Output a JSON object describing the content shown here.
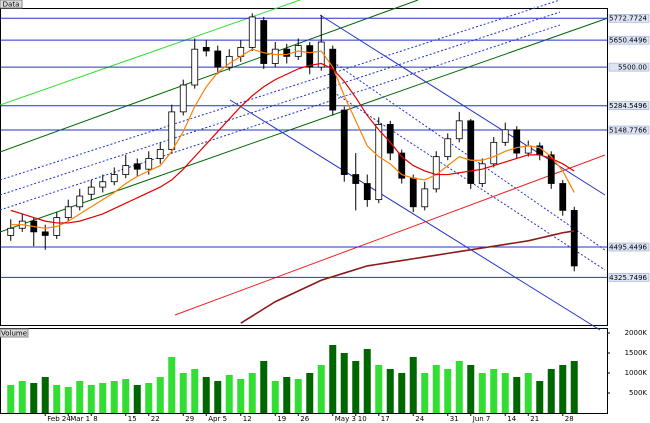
{
  "chart_data": {
    "type": "candlestick",
    "title": "Data",
    "categories": [
      null,
      null,
      null,
      "Feb 24",
      null,
      "Mar 1",
      null,
      "8",
      null,
      null,
      "15",
      null,
      "22",
      null,
      null,
      "29",
      null,
      "Apr 5",
      null,
      null,
      "12",
      null,
      null,
      "19",
      null,
      "26",
      null,
      null,
      "May 3",
      null,
      "10",
      null,
      "17",
      null,
      null,
      "24",
      null,
      null,
      "31",
      null,
      "Jun 7",
      null,
      null,
      "14",
      null,
      "21",
      null,
      null,
      "28",
      null
    ],
    "open": [
      4560,
      4600,
      4640,
      4580,
      4560,
      4660,
      4720,
      4790,
      4830,
      4860,
      4900,
      4960,
      4930,
      4990,
      5040,
      5250,
      5400,
      5610,
      5590,
      5500,
      5560,
      5610,
      5760,
      5520,
      5600,
      5560,
      5620,
      5500,
      5600,
      5260,
      4900,
      4850,
      4760,
      5180,
      5020,
      4880,
      4720,
      4820,
      5000,
      5100,
      5200,
      4850,
      4960,
      5080,
      5150,
      5020,
      5060,
      5010,
      4850,
      4700
    ],
    "high": [
      4650,
      4680,
      4660,
      4620,
      4690,
      4760,
      4820,
      4870,
      4900,
      4940,
      5010,
      4990,
      5030,
      5080,
      5290,
      5430,
      5660,
      5650,
      5620,
      5600,
      5650,
      5800,
      5780,
      5640,
      5630,
      5660,
      5640,
      5790,
      5620,
      5280,
      5020,
      4900,
      5220,
      5200,
      5040,
      4900,
      4860,
      5030,
      5130,
      5250,
      5210,
      4990,
      5110,
      5190,
      5170,
      5090,
      5080,
      5030,
      4870,
      4720
    ],
    "low": [
      4530,
      4580,
      4500,
      4480,
      4540,
      4640,
      4700,
      4760,
      4800,
      4840,
      4880,
      4890,
      4900,
      4960,
      5020,
      5230,
      5380,
      5560,
      5460,
      5480,
      5530,
      5590,
      5490,
      5500,
      5520,
      5540,
      5460,
      5480,
      5230,
      4860,
      4700,
      4720,
      4740,
      4980,
      4850,
      4690,
      4700,
      4800,
      4980,
      5080,
      4820,
      4830,
      4940,
      5060,
      4990,
      5000,
      4980,
      4820,
      4670,
      4360
    ],
    "close": [
      4600,
      4640,
      4580,
      4560,
      4660,
      4720,
      4780,
      4830,
      4860,
      4900,
      4950,
      4930,
      4990,
      5040,
      5250,
      5400,
      5600,
      5590,
      5500,
      5560,
      5610,
      5780,
      5520,
      5600,
      5560,
      5620,
      5500,
      5640,
      5260,
      4900,
      4850,
      4760,
      5180,
      5020,
      4880,
      4720,
      4820,
      5000,
      5100,
      5200,
      4850,
      4960,
      5080,
      5150,
      5020,
      5060,
      5010,
      4850,
      4700,
      4390
    ],
    "up_color": "#ffffff",
    "down_color": "#000000",
    "ylim": [
      4060,
      5830
    ],
    "yticks": [
      5772.7724,
      5650.4496,
      {
        "value": 5500,
        "label": "5500.00"
      },
      5284.5496,
      5148.7766,
      4495.4496,
      4325.7496
    ],
    "grid": true,
    "overlays": [
      {
        "color": "#ff8000",
        "values": [
          4620,
          4620,
          4610,
          4600,
          4610,
          4640,
          4680,
          4720,
          4760,
          4800,
          4850,
          4890,
          4920,
          4950,
          5030,
          5140,
          5280,
          5390,
          5470,
          5520,
          5560,
          5600,
          5580,
          5570,
          5570,
          5590,
          5580,
          5590,
          5500,
          5340,
          5200,
          5060,
          5000,
          4960,
          4900,
          4880,
          4870,
          4900,
          4950,
          5000,
          4980,
          4980,
          5000,
          5030,
          5050,
          5060,
          5050,
          5000,
          4920,
          4800
        ]
      },
      {
        "color": "#e00000",
        "values": [
          4700,
          4680,
          4660,
          4640,
          4630,
          4630,
          4640,
          4660,
          4680,
          4710,
          4740,
          4770,
          4800,
          4830,
          4870,
          4930,
          5000,
          5070,
          5140,
          5210,
          5280,
          5340,
          5390,
          5430,
          5460,
          5490,
          5510,
          5520,
          5490,
          5420,
          5330,
          5230,
          5150,
          5080,
          5000,
          4950,
          4920,
          4900,
          4900,
          4910,
          4920,
          4930,
          4950,
          4970,
          4990,
          5010,
          5010,
          4990,
          4960,
          4920
        ]
      },
      {
        "color": "#8b1a1a",
        "values": [
          null,
          null,
          null,
          null,
          null,
          null,
          null,
          null,
          null,
          null,
          null,
          null,
          null,
          null,
          null,
          null,
          null,
          null,
          null,
          null,
          4070,
          4110,
          4150,
          4190,
          4220,
          4250,
          4280,
          4310,
          4330,
          4350,
          4370,
          4390,
          4400,
          4410,
          4420,
          4430,
          4440,
          4450,
          4460,
          4470,
          4480,
          4490,
          4500,
          4510,
          4520,
          4530,
          4545,
          4560,
          4575,
          4585
        ]
      }
    ],
    "volume": {
      "label": "Volume",
      "values": [
        700000,
        800000,
        750000,
        900000,
        700000,
        650000,
        800000,
        700000,
        750000,
        800000,
        850000,
        700000,
        750000,
        900000,
        1400000,
        1000000,
        1100000,
        900000,
        800000,
        950000,
        850000,
        1000000,
        1300000,
        800000,
        900000,
        850000,
        1000000,
        1200000,
        1700000,
        1500000,
        1300000,
        1600000,
        1200000,
        1100000,
        1000000,
        1400000,
        1000000,
        1200000,
        1100000,
        1300000,
        1200000,
        1000000,
        1100000,
        1000000,
        900000,
        1000000,
        800000,
        1100000,
        1200000,
        1300000
      ],
      "ylim": [
        0,
        2100000
      ],
      "yticks": [
        {
          "value": 500000,
          "label": "500K"
        },
        {
          "value": 1000000,
          "label": "1000K"
        },
        {
          "value": 1500000,
          "label": "1500K"
        },
        {
          "value": 2000000,
          "label": "2000K"
        }
      ],
      "up_color": "#33dd33",
      "down_color": "#006600"
    }
  }
}
